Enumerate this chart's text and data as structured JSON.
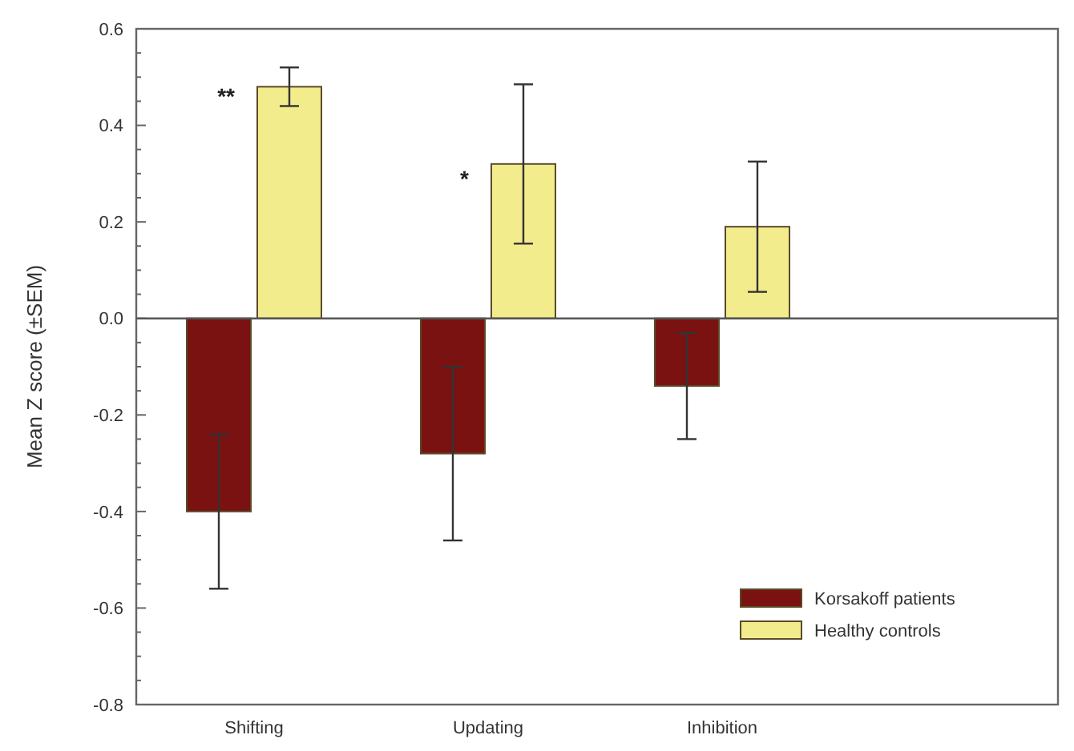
{
  "chart_data": {
    "type": "bar",
    "ylabel": "Mean Z score (±SEM)",
    "categories": [
      "Shifting",
      "Updating",
      "Inhibition"
    ],
    "series": [
      {
        "name": "Korsakoff patients",
        "color": "#7a1212",
        "values": [
          -0.4,
          -0.28,
          -0.14
        ],
        "errors": [
          0.16,
          0.18,
          0.11
        ]
      },
      {
        "name": "Healthy controls",
        "color": "#f2ec8c",
        "values": [
          0.48,
          0.32,
          0.19
        ],
        "errors": [
          0.04,
          0.165,
          0.135
        ]
      }
    ],
    "ylim": [
      -0.8,
      0.6
    ],
    "yticks": [
      -0.8,
      -0.6,
      -0.4,
      -0.2,
      {
        "value": 0,
        "label": "0.0"
      },
      0.2,
      0.4,
      0.6
    ],
    "legend": "bottom right",
    "ref_lines": [
      {
        "axis": "y",
        "value": 0,
        "color": "#555555"
      }
    ],
    "annotations": [
      {
        "text": "**",
        "x": "Shifting",
        "y": 0.46
      },
      {
        "text": "*",
        "x": "Updating",
        "y": 0.29
      }
    ]
  }
}
